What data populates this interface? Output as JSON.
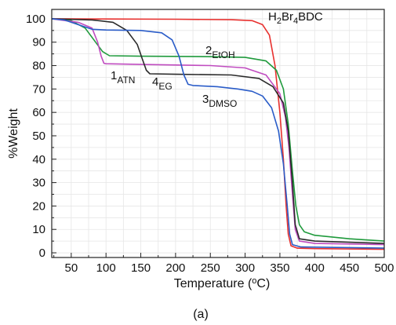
{
  "chart_data": {
    "type": "line",
    "xlabel": "Temperature (",
    "xlabel_sup": "o",
    "xlabel_end": "C)",
    "ylabel": "%Weight",
    "xlim": [
      22,
      500
    ],
    "ylim": [
      -2,
      104
    ],
    "grid": true,
    "x_ticks": [
      50,
      100,
      150,
      200,
      250,
      300,
      350,
      400,
      450,
      500
    ],
    "y_ticks": [
      0,
      10,
      20,
      30,
      40,
      50,
      60,
      70,
      80,
      90,
      100
    ],
    "caption": "(a)",
    "series": [
      {
        "label_main": "H",
        "label_sub1": "2",
        "label_mid": "Br",
        "label_sub2": "4",
        "label_end": "BDC",
        "color": "#e8312f",
        "points": [
          [
            22,
            100
          ],
          [
            100,
            99.9
          ],
          [
            200,
            99.8
          ],
          [
            280,
            99.6
          ],
          [
            310,
            99.2
          ],
          [
            325,
            97.5
          ],
          [
            335,
            93
          ],
          [
            343,
            80
          ],
          [
            350,
            60
          ],
          [
            355,
            40
          ],
          [
            359,
            20
          ],
          [
            362,
            8
          ],
          [
            366,
            3
          ],
          [
            375,
            2
          ],
          [
            400,
            1.8
          ],
          [
            500,
            1.5
          ]
        ]
      },
      {
        "label_main": "2",
        "label_sub": "EtOH",
        "color": "#1f9a3c",
        "points": [
          [
            22,
            100
          ],
          [
            50,
            99.2
          ],
          [
            70,
            96
          ],
          [
            85,
            90
          ],
          [
            95,
            86
          ],
          [
            105,
            84.2
          ],
          [
            150,
            84
          ],
          [
            250,
            83.8
          ],
          [
            300,
            83.5
          ],
          [
            330,
            82
          ],
          [
            345,
            78
          ],
          [
            355,
            70
          ],
          [
            362,
            55
          ],
          [
            368,
            35
          ],
          [
            373,
            20
          ],
          [
            378,
            12
          ],
          [
            385,
            9
          ],
          [
            400,
            7.5
          ],
          [
            450,
            6
          ],
          [
            500,
            5
          ]
        ]
      },
      {
        "label_main": "1",
        "label_sub": "ATN",
        "color": "#c04cc0",
        "points": [
          [
            22,
            100
          ],
          [
            60,
            98.5
          ],
          [
            80,
            96
          ],
          [
            88,
            90
          ],
          [
            93,
            84
          ],
          [
            97,
            81
          ],
          [
            100,
            80.8
          ],
          [
            150,
            80.5
          ],
          [
            250,
            80
          ],
          [
            300,
            79
          ],
          [
            330,
            76
          ],
          [
            350,
            68
          ],
          [
            358,
            58
          ],
          [
            363,
            45
          ],
          [
            368,
            25
          ],
          [
            372,
            10
          ],
          [
            378,
            5
          ],
          [
            400,
            4
          ],
          [
            500,
            3.5
          ]
        ]
      },
      {
        "label_main": "4",
        "label_sub": "EG",
        "color": "#2b2b2b",
        "points": [
          [
            22,
            100
          ],
          [
            80,
            99.5
          ],
          [
            110,
            98.5
          ],
          [
            130,
            95
          ],
          [
            145,
            89
          ],
          [
            152,
            83
          ],
          [
            158,
            78
          ],
          [
            163,
            76.5
          ],
          [
            200,
            76.3
          ],
          [
            280,
            76
          ],
          [
            320,
            74.5
          ],
          [
            340,
            71
          ],
          [
            355,
            64
          ],
          [
            362,
            52
          ],
          [
            368,
            30
          ],
          [
            372,
            12
          ],
          [
            378,
            6
          ],
          [
            400,
            5
          ],
          [
            500,
            4
          ]
        ]
      },
      {
        "label_main": "3",
        "label_sub": "DMSO",
        "color": "#2a5cc8",
        "points": [
          [
            22,
            100
          ],
          [
            40,
            99.5
          ],
          [
            60,
            97.5
          ],
          [
            80,
            95.5
          ],
          [
            100,
            95.2
          ],
          [
            150,
            95
          ],
          [
            180,
            94
          ],
          [
            195,
            91
          ],
          [
            205,
            84
          ],
          [
            212,
            76
          ],
          [
            218,
            72
          ],
          [
            225,
            71.5
          ],
          [
            260,
            71
          ],
          [
            290,
            70
          ],
          [
            310,
            69
          ],
          [
            325,
            67
          ],
          [
            338,
            62
          ],
          [
            348,
            52
          ],
          [
            355,
            38
          ],
          [
            360,
            22
          ],
          [
            364,
            8
          ],
          [
            368,
            3.5
          ],
          [
            380,
            2.5
          ],
          [
            500,
            2
          ]
        ]
      }
    ]
  }
}
